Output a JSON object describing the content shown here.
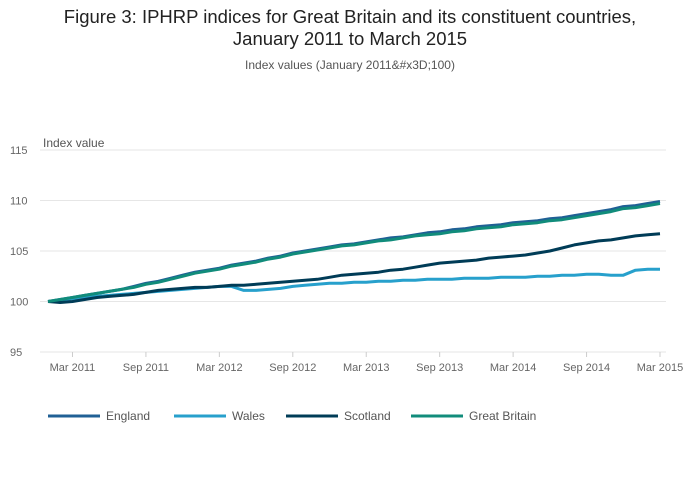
{
  "chart_data": {
    "type": "line",
    "title_line1": "Figure 3: IPHRP indices for Great Britain and its constituent countries,",
    "title_line2": "January 2011 to March 2015",
    "subtitle": "Index values (January 2011&#x3D;100)",
    "ylabel": "Index value",
    "xlabel": "",
    "ylim": [
      95,
      115
    ],
    "yticks": [
      "95",
      "100",
      "105",
      "110",
      "115"
    ],
    "xticks": [
      "Mar 2011",
      "Sep 2011",
      "Mar 2012",
      "Sep 2012",
      "Mar 2013",
      "Sep 2013",
      "Mar 2014",
      "Sep 2014",
      "Mar 2015"
    ],
    "grid": true,
    "legend_position": "bottom",
    "x": [
      "Jan 2011",
      "Feb 2011",
      "Mar 2011",
      "Apr 2011",
      "May 2011",
      "Jun 2011",
      "Jul 2011",
      "Aug 2011",
      "Sep 2011",
      "Oct 2011",
      "Nov 2011",
      "Dec 2011",
      "Jan 2012",
      "Feb 2012",
      "Mar 2012",
      "Apr 2012",
      "May 2012",
      "Jun 2012",
      "Jul 2012",
      "Aug 2012",
      "Sep 2012",
      "Oct 2012",
      "Nov 2012",
      "Dec 2012",
      "Jan 2013",
      "Feb 2013",
      "Mar 2013",
      "Apr 2013",
      "May 2013",
      "Jun 2013",
      "Jul 2013",
      "Aug 2013",
      "Sep 2013",
      "Oct 2013",
      "Nov 2013",
      "Dec 2013",
      "Jan 2014",
      "Feb 2014",
      "Mar 2014",
      "Apr 2014",
      "May 2014",
      "Jun 2014",
      "Jul 2014",
      "Aug 2014",
      "Sep 2014",
      "Oct 2014",
      "Nov 2014",
      "Dec 2014",
      "Jan 2015",
      "Feb 2015",
      "Mar 2015"
    ],
    "series": [
      {
        "name": "England",
        "color": "#206095",
        "values": [
          100,
          100.2,
          100.4,
          100.6,
          100.8,
          101,
          101.2,
          101.5,
          101.8,
          102,
          102.3,
          102.6,
          102.9,
          103.1,
          103.3,
          103.6,
          103.8,
          104,
          104.3,
          104.5,
          104.8,
          105,
          105.2,
          105.4,
          105.6,
          105.7,
          105.9,
          106.1,
          106.3,
          106.4,
          106.6,
          106.8,
          106.9,
          107.1,
          107.2,
          107.4,
          107.5,
          107.6,
          107.8,
          107.9,
          108,
          108.2,
          108.3,
          108.5,
          108.7,
          108.9,
          109.1,
          109.4,
          109.5,
          109.7,
          109.9
        ]
      },
      {
        "name": "Wales",
        "color": "#27a0cc",
        "values": [
          100,
          100.1,
          100.3,
          100.4,
          100.5,
          100.6,
          100.7,
          100.8,
          100.9,
          101,
          101.1,
          101.2,
          101.3,
          101.4,
          101.5,
          101.5,
          101.1,
          101.1,
          101.2,
          101.3,
          101.5,
          101.6,
          101.7,
          101.8,
          101.8,
          101.9,
          101.9,
          102,
          102,
          102.1,
          102.1,
          102.2,
          102.2,
          102.2,
          102.3,
          102.3,
          102.3,
          102.4,
          102.4,
          102.4,
          102.5,
          102.5,
          102.6,
          102.6,
          102.7,
          102.7,
          102.6,
          102.6,
          103.1,
          103.2,
          103.2
        ]
      },
      {
        "name": "Scotland",
        "color": "#003c57",
        "values": [
          100,
          99.9,
          100,
          100.2,
          100.4,
          100.5,
          100.6,
          100.7,
          100.9,
          101.1,
          101.2,
          101.3,
          101.4,
          101.4,
          101.5,
          101.6,
          101.6,
          101.7,
          101.8,
          101.9,
          102,
          102.1,
          102.2,
          102.4,
          102.6,
          102.7,
          102.8,
          102.9,
          103.1,
          103.2,
          103.4,
          103.6,
          103.8,
          103.9,
          104,
          104.1,
          104.3,
          104.4,
          104.5,
          104.6,
          104.8,
          105,
          105.3,
          105.6,
          105.8,
          106,
          106.1,
          106.3,
          106.5,
          106.6,
          106.7
        ]
      },
      {
        "name": "Great Britain",
        "color": "#118c7b",
        "values": [
          100,
          100.2,
          100.4,
          100.6,
          100.8,
          101,
          101.2,
          101.4,
          101.7,
          101.9,
          102.2,
          102.5,
          102.8,
          103,
          103.2,
          103.5,
          103.7,
          103.9,
          104.2,
          104.4,
          104.7,
          104.9,
          105.1,
          105.3,
          105.5,
          105.6,
          105.8,
          106,
          106.1,
          106.3,
          106.5,
          106.6,
          106.7,
          106.9,
          107,
          107.2,
          107.3,
          107.4,
          107.6,
          107.7,
          107.8,
          108,
          108.1,
          108.3,
          108.5,
          108.7,
          108.9,
          109.2,
          109.3,
          109.5,
          109.7
        ]
      }
    ]
  }
}
